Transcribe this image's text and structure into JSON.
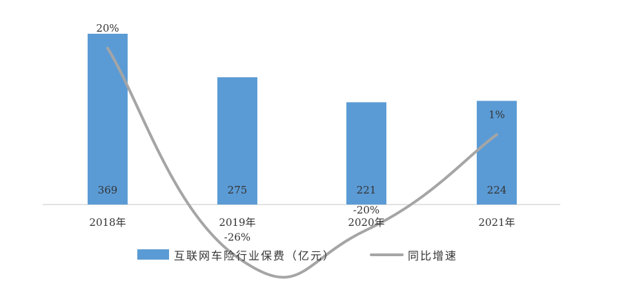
{
  "chart_data": {
    "type": "bar",
    "categories": [
      "2018年",
      "2019年",
      "2020年",
      "2021年"
    ],
    "series": [
      {
        "name": "互联网车险行业保费（亿元）",
        "type": "bar",
        "values": [
          369,
          275,
          221,
          224
        ],
        "labels": [
          "369",
          "275",
          "221",
          "224"
        ],
        "color": "#5B9BD5"
      },
      {
        "name": "同比增速",
        "type": "line",
        "values": [
          20,
          -26,
          -20,
          1
        ],
        "labels": [
          "20%",
          "-26%",
          "-20%",
          "1%"
        ],
        "color": "#A5A5A5"
      }
    ],
    "grid": false,
    "legend": "bottom"
  }
}
